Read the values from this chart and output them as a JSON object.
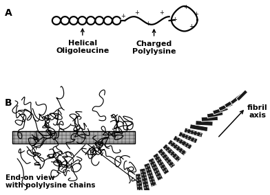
{
  "bg_color": "#ffffff",
  "label_A": "A",
  "label_B": "B",
  "label_helical": "Helical\nOligoleucine",
  "label_charged": "Charged\nPolylysine",
  "label_endon": "End-on view\nwith polylysine chains",
  "label_fibril": "fibril\naxis",
  "bold_fontsize": 8,
  "small_fontsize": 6.5
}
